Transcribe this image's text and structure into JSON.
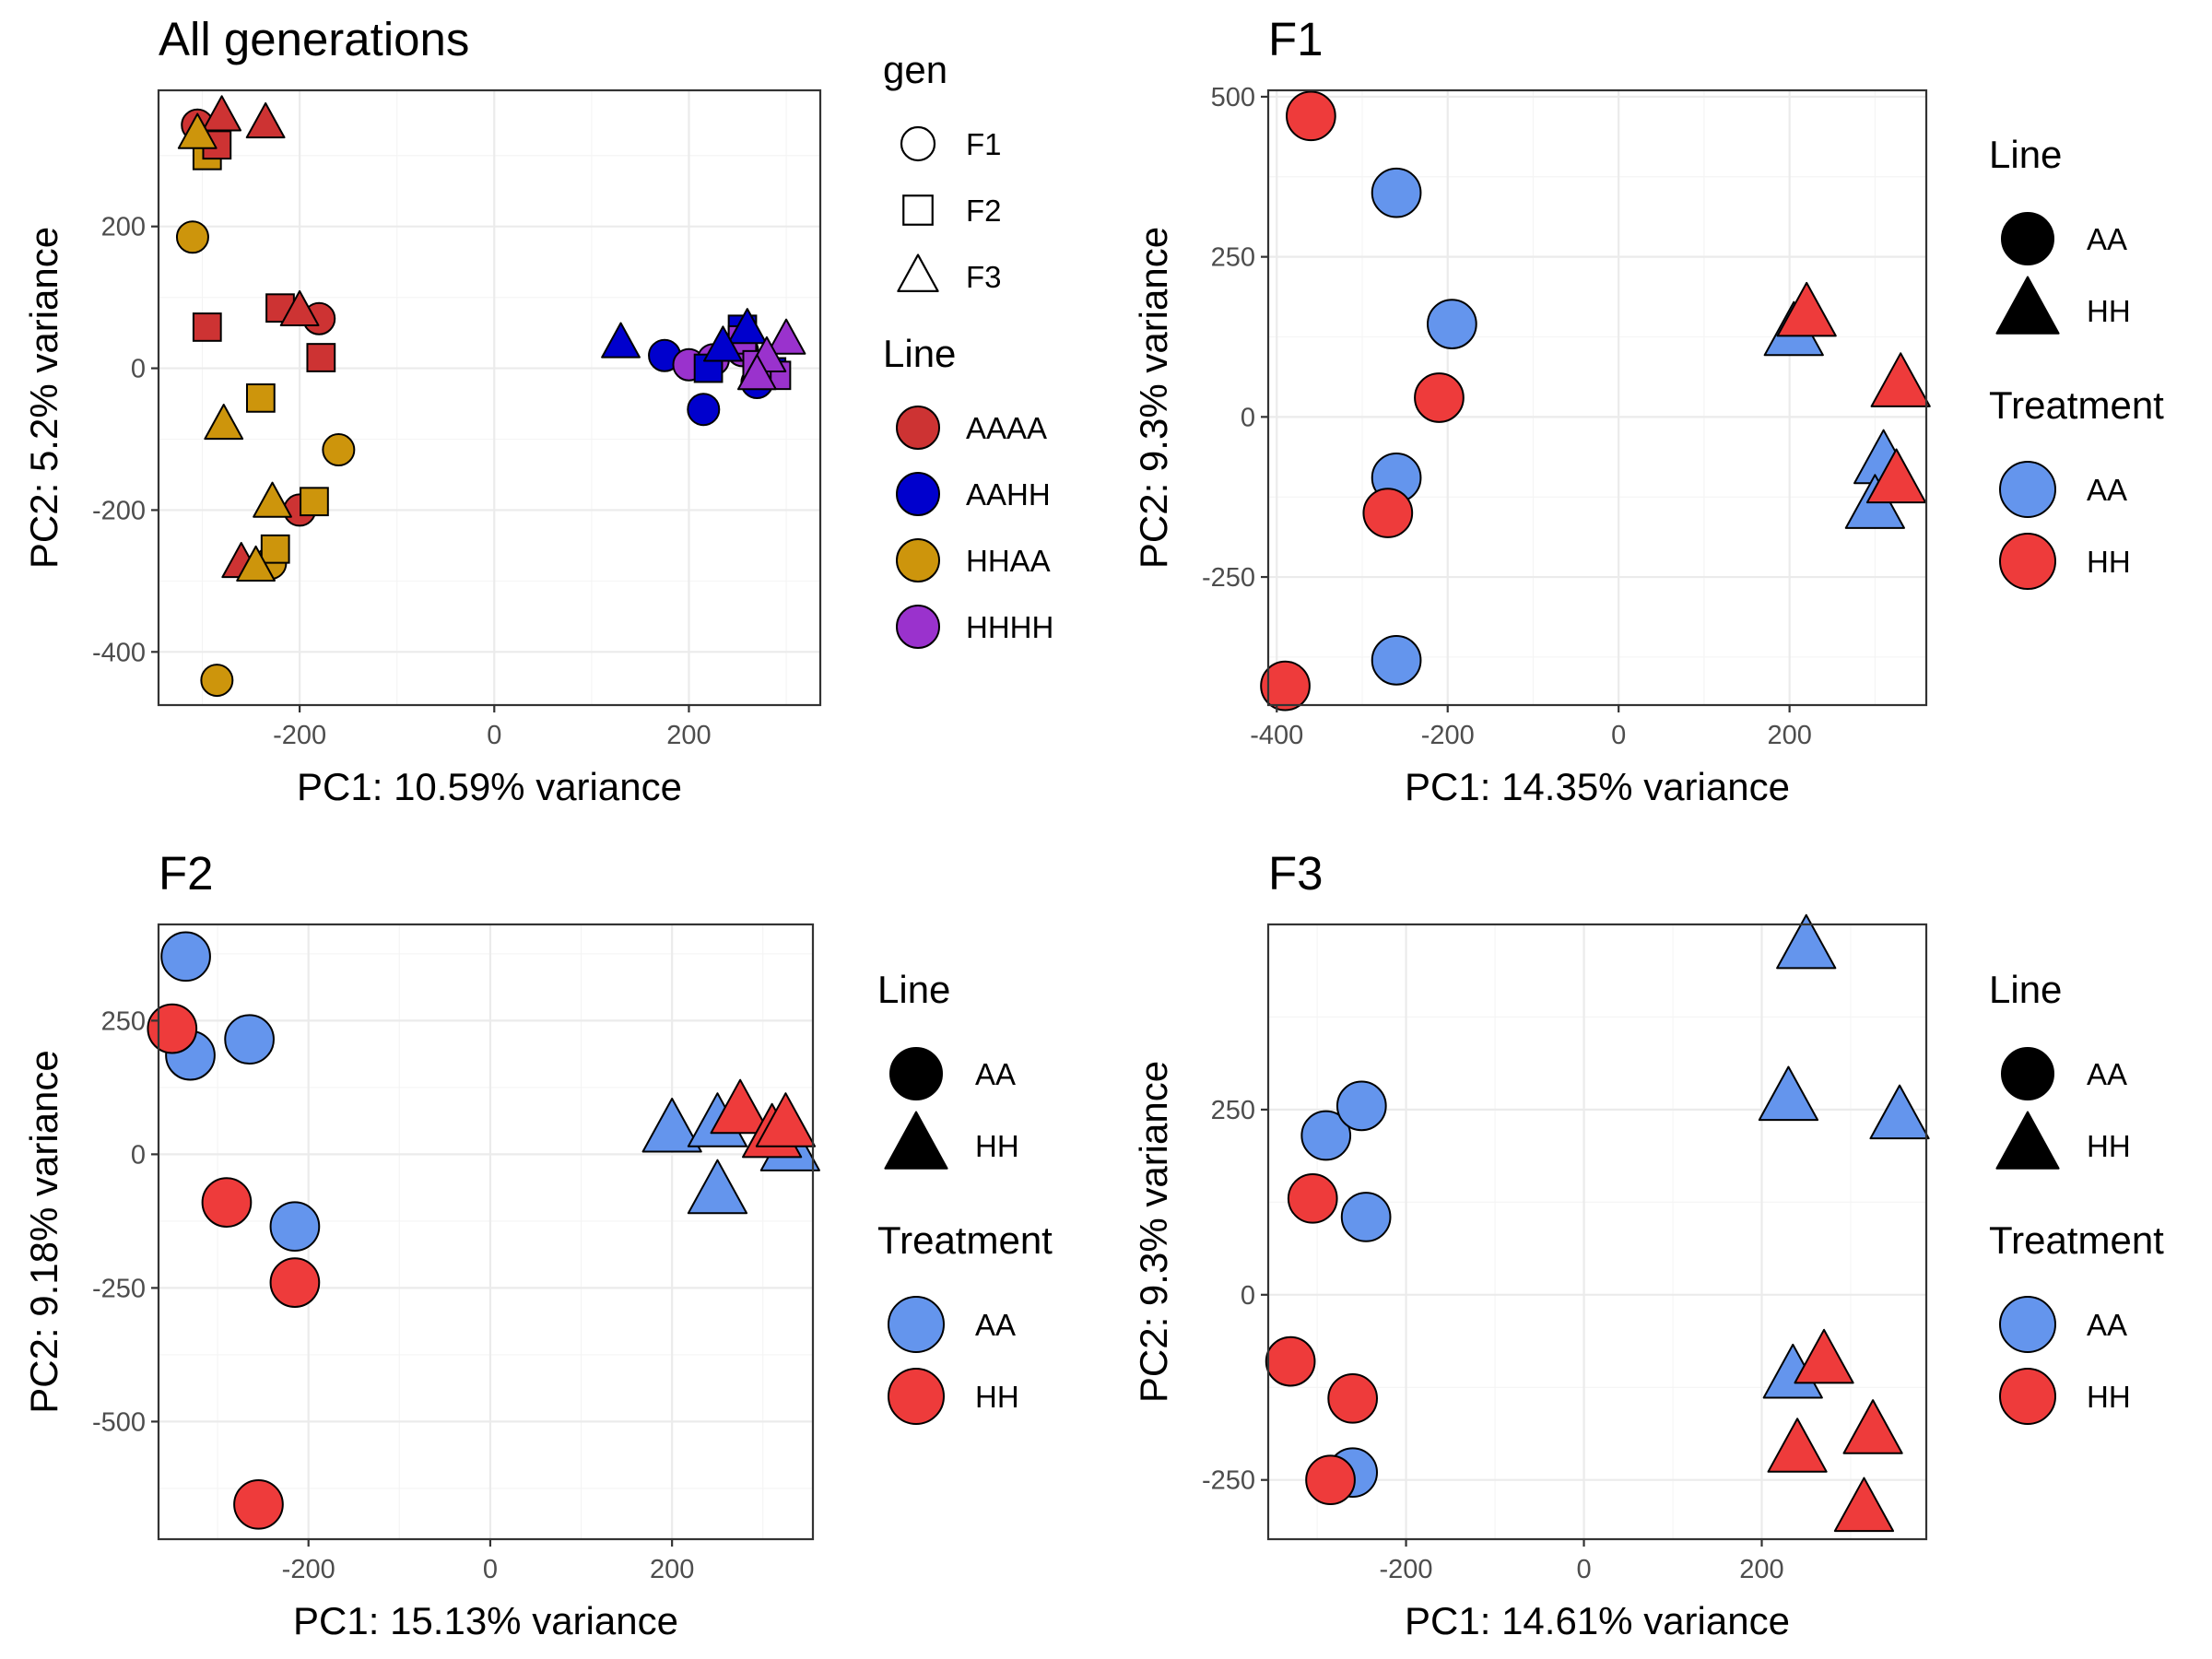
{
  "colors": {
    "AAAA": "#cd3333",
    "AAHH": "#0000cd",
    "HHAA": "#cd950c",
    "HHHH": "#9a32cd",
    "AA": "#6495ed",
    "HH": "#ee3b3b"
  },
  "chart_data": [
    {
      "type": "scatter",
      "title": "All generations",
      "xlabel": "PC1: 10.59% variance",
      "ylabel": "PC2: 5.2% variance",
      "xlim": [
        -345,
        335
      ],
      "ylim": [
        -475,
        392
      ],
      "xticks": [
        -200,
        0,
        200
      ],
      "yticks": [
        -400,
        -200,
        0,
        200
      ],
      "grid": true,
      "legend": [
        {
          "title": "gen",
          "kind": "shape",
          "items": [
            {
              "label": "F1",
              "shape": "circle"
            },
            {
              "label": "F2",
              "shape": "square"
            },
            {
              "label": "F3",
              "shape": "triangle"
            }
          ]
        },
        {
          "title": "Line",
          "kind": "fill",
          "items": [
            {
              "label": "AAAA",
              "color": "AAAA"
            },
            {
              "label": "AAHH",
              "color": "AAHH"
            },
            {
              "label": "HHAA",
              "color": "HHAA"
            },
            {
              "label": "HHHH",
              "color": "HHHH"
            }
          ]
        }
      ],
      "points": [
        {
          "x": -305,
          "y": 343,
          "gen": "F1",
          "line": "AAAA"
        },
        {
          "x": -310,
          "y": 185,
          "gen": "F1",
          "line": "HHAA"
        },
        {
          "x": -160,
          "y": -115,
          "gen": "F1",
          "line": "HHAA"
        },
        {
          "x": -285,
          "y": -440,
          "gen": "F1",
          "line": "HHAA"
        },
        {
          "x": -180,
          "y": 70,
          "gen": "F1",
          "line": "AAAA"
        },
        {
          "x": -200,
          "y": -200,
          "gen": "F1",
          "line": "AAAA"
        },
        {
          "x": -230,
          "y": -275,
          "gen": "F1",
          "line": "HHAA"
        },
        {
          "x": 175,
          "y": 18,
          "gen": "F1",
          "line": "AAHH"
        },
        {
          "x": 215,
          "y": -58,
          "gen": "F1",
          "line": "AAHH"
        },
        {
          "x": 270,
          "y": -20,
          "gen": "F1",
          "line": "AAHH"
        },
        {
          "x": 200,
          "y": 5,
          "gen": "F1",
          "line": "HHHH"
        },
        {
          "x": 225,
          "y": 12,
          "gen": "F1",
          "line": "HHHH"
        },
        {
          "x": 255,
          "y": 25,
          "gen": "F1",
          "line": "HHHH"
        },
        {
          "x": -295,
          "y": 300,
          "gen": "F2",
          "line": "HHAA"
        },
        {
          "x": -285,
          "y": 315,
          "gen": "F2",
          "line": "AAAA"
        },
        {
          "x": -295,
          "y": 58,
          "gen": "F2",
          "line": "AAAA"
        },
        {
          "x": -220,
          "y": 85,
          "gen": "F2",
          "line": "AAAA"
        },
        {
          "x": -178,
          "y": 15,
          "gen": "F2",
          "line": "AAAA"
        },
        {
          "x": -240,
          "y": -42,
          "gen": "F2",
          "line": "HHAA"
        },
        {
          "x": -185,
          "y": -188,
          "gen": "F2",
          "line": "HHAA"
        },
        {
          "x": -225,
          "y": -255,
          "gen": "F2",
          "line": "HHAA"
        },
        {
          "x": 255,
          "y": 55,
          "gen": "F2",
          "line": "AAHH"
        },
        {
          "x": 220,
          "y": 0,
          "gen": "F2",
          "line": "AAHH"
        },
        {
          "x": 285,
          "y": -5,
          "gen": "F2",
          "line": "AAHH"
        },
        {
          "x": 255,
          "y": 40,
          "gen": "F2",
          "line": "HHHH"
        },
        {
          "x": 290,
          "y": -10,
          "gen": "F2",
          "line": "HHHH"
        },
        {
          "x": 270,
          "y": 5,
          "gen": "F2",
          "line": "HHHH"
        },
        {
          "x": -280,
          "y": 355,
          "gen": "F3",
          "line": "AAAA"
        },
        {
          "x": -235,
          "y": 345,
          "gen": "F3",
          "line": "AAAA"
        },
        {
          "x": -305,
          "y": 330,
          "gen": "F3",
          "line": "HHAA"
        },
        {
          "x": -200,
          "y": 80,
          "gen": "F3",
          "line": "AAAA"
        },
        {
          "x": -278,
          "y": -80,
          "gen": "F3",
          "line": "HHAA"
        },
        {
          "x": -228,
          "y": -190,
          "gen": "F3",
          "line": "HHAA"
        },
        {
          "x": -260,
          "y": -275,
          "gen": "F3",
          "line": "AAAA"
        },
        {
          "x": -245,
          "y": -280,
          "gen": "F3",
          "line": "HHAA"
        },
        {
          "x": 130,
          "y": 35,
          "gen": "F3",
          "line": "AAHH"
        },
        {
          "x": 260,
          "y": 55,
          "gen": "F3",
          "line": "AAHH"
        },
        {
          "x": 235,
          "y": 30,
          "gen": "F3",
          "line": "AAHH"
        },
        {
          "x": 300,
          "y": 40,
          "gen": "F3",
          "line": "HHHH"
        },
        {
          "x": 280,
          "y": 15,
          "gen": "F3",
          "line": "HHHH"
        },
        {
          "x": 270,
          "y": -10,
          "gen": "F3",
          "line": "HHHH"
        }
      ]
    },
    {
      "type": "scatter",
      "title": "F1",
      "xlabel": "PC1: 14.35% variance",
      "ylabel": "PC2: 9.3% variance",
      "xlim": [
        -410,
        360
      ],
      "ylim": [
        -450,
        510
      ],
      "xticks": [
        -400,
        -200,
        0,
        200
      ],
      "yticks": [
        -250,
        0,
        250,
        500
      ],
      "grid": true,
      "legend": [
        {
          "title": "Line",
          "kind": "shape",
          "items": [
            {
              "label": "AA",
              "shape": "circle"
            },
            {
              "label": "HH",
              "shape": "triangle"
            }
          ]
        },
        {
          "title": "Treatment",
          "kind": "fill",
          "items": [
            {
              "label": "AA",
              "color": "AA"
            },
            {
              "label": "HH",
              "color": "HH"
            }
          ]
        }
      ],
      "points": [
        {
          "x": -360,
          "y": 470,
          "line": "AA",
          "treatment": "HH"
        },
        {
          "x": -260,
          "y": 350,
          "line": "AA",
          "treatment": "AA"
        },
        {
          "x": -195,
          "y": 145,
          "line": "AA",
          "treatment": "AA"
        },
        {
          "x": -210,
          "y": 30,
          "line": "AA",
          "treatment": "HH"
        },
        {
          "x": -260,
          "y": -95,
          "line": "AA",
          "treatment": "AA"
        },
        {
          "x": -270,
          "y": -150,
          "line": "AA",
          "treatment": "HH"
        },
        {
          "x": -260,
          "y": -380,
          "line": "AA",
          "treatment": "AA"
        },
        {
          "x": -390,
          "y": -420,
          "line": "AA",
          "treatment": "HH"
        },
        {
          "x": 205,
          "y": 130,
          "line": "HH",
          "treatment": "AA"
        },
        {
          "x": 220,
          "y": 160,
          "line": "HH",
          "treatment": "HH"
        },
        {
          "x": 330,
          "y": 50,
          "line": "HH",
          "treatment": "HH"
        },
        {
          "x": 310,
          "y": -70,
          "line": "HH",
          "treatment": "AA"
        },
        {
          "x": 300,
          "y": -140,
          "line": "HH",
          "treatment": "AA"
        },
        {
          "x": 325,
          "y": -100,
          "line": "HH",
          "treatment": "HH"
        }
      ]
    },
    {
      "type": "scatter",
      "title": "F2",
      "xlabel": "PC1: 15.13% variance",
      "ylabel": "PC2: 9.18% variance",
      "xlim": [
        -365,
        355
      ],
      "ylim": [
        -720,
        430
      ],
      "xticks": [
        -200,
        0,
        200
      ],
      "yticks": [
        -500,
        -250,
        0,
        250
      ],
      "grid": true,
      "legend": [
        {
          "title": "Line",
          "kind": "shape",
          "items": [
            {
              "label": "AA",
              "shape": "circle"
            },
            {
              "label": "HH",
              "shape": "triangle"
            }
          ]
        },
        {
          "title": "Treatment",
          "kind": "fill",
          "items": [
            {
              "label": "AA",
              "color": "AA"
            },
            {
              "label": "HH",
              "color": "HH"
            }
          ]
        }
      ],
      "points": [
        {
          "x": -335,
          "y": 370,
          "line": "AA",
          "treatment": "AA"
        },
        {
          "x": -330,
          "y": 185,
          "line": "AA",
          "treatment": "AA"
        },
        {
          "x": -265,
          "y": 215,
          "line": "AA",
          "treatment": "AA"
        },
        {
          "x": -350,
          "y": 235,
          "line": "AA",
          "treatment": "HH"
        },
        {
          "x": -290,
          "y": -90,
          "line": "AA",
          "treatment": "HH"
        },
        {
          "x": -215,
          "y": -135,
          "line": "AA",
          "treatment": "AA"
        },
        {
          "x": -215,
          "y": -240,
          "line": "AA",
          "treatment": "HH"
        },
        {
          "x": -255,
          "y": -655,
          "line": "AA",
          "treatment": "HH"
        },
        {
          "x": 200,
          "y": 45,
          "line": "HH",
          "treatment": "AA"
        },
        {
          "x": 250,
          "y": 55,
          "line": "HH",
          "treatment": "AA"
        },
        {
          "x": 250,
          "y": -70,
          "line": "HH",
          "treatment": "AA"
        },
        {
          "x": 330,
          "y": 10,
          "line": "HH",
          "treatment": "AA"
        },
        {
          "x": 275,
          "y": 80,
          "line": "HH",
          "treatment": "HH"
        },
        {
          "x": 310,
          "y": 35,
          "line": "HH",
          "treatment": "HH"
        },
        {
          "x": 325,
          "y": 55,
          "line": "HH",
          "treatment": "HH"
        }
      ]
    },
    {
      "type": "scatter",
      "title": "F3",
      "xlabel": "PC1: 14.61% variance",
      "ylabel": "PC2: 9.3% variance",
      "xlim": [
        -355,
        385
      ],
      "ylim": [
        -330,
        500
      ],
      "xticks": [
        -200,
        0,
        200
      ],
      "yticks": [
        -250,
        0,
        250
      ],
      "grid": true,
      "legend": [
        {
          "title": "Line",
          "kind": "shape",
          "items": [
            {
              "label": "AA",
              "shape": "circle"
            },
            {
              "label": "HH",
              "shape": "triangle"
            }
          ]
        },
        {
          "title": "Treatment",
          "kind": "fill",
          "items": [
            {
              "label": "AA",
              "color": "AA"
            },
            {
              "label": "HH",
              "color": "HH"
            }
          ]
        }
      ],
      "points": [
        {
          "x": -290,
          "y": 215,
          "line": "AA",
          "treatment": "AA"
        },
        {
          "x": -250,
          "y": 255,
          "line": "AA",
          "treatment": "AA"
        },
        {
          "x": -245,
          "y": 105,
          "line": "AA",
          "treatment": "AA"
        },
        {
          "x": -305,
          "y": 130,
          "line": "AA",
          "treatment": "HH"
        },
        {
          "x": -330,
          "y": -90,
          "line": "AA",
          "treatment": "HH"
        },
        {
          "x": -260,
          "y": -140,
          "line": "AA",
          "treatment": "HH"
        },
        {
          "x": -260,
          "y": -240,
          "line": "AA",
          "treatment": "AA"
        },
        {
          "x": -285,
          "y": -250,
          "line": "AA",
          "treatment": "HH"
        },
        {
          "x": 250,
          "y": 470,
          "line": "HH",
          "treatment": "AA"
        },
        {
          "x": 230,
          "y": 265,
          "line": "HH",
          "treatment": "AA"
        },
        {
          "x": 355,
          "y": 240,
          "line": "HH",
          "treatment": "AA"
        },
        {
          "x": 235,
          "y": -110,
          "line": "HH",
          "treatment": "AA"
        },
        {
          "x": 270,
          "y": -90,
          "line": "HH",
          "treatment": "HH"
        },
        {
          "x": 240,
          "y": -210,
          "line": "HH",
          "treatment": "HH"
        },
        {
          "x": 325,
          "y": -185,
          "line": "HH",
          "treatment": "HH"
        },
        {
          "x": 315,
          "y": -290,
          "line": "HH",
          "treatment": "HH"
        }
      ]
    }
  ]
}
